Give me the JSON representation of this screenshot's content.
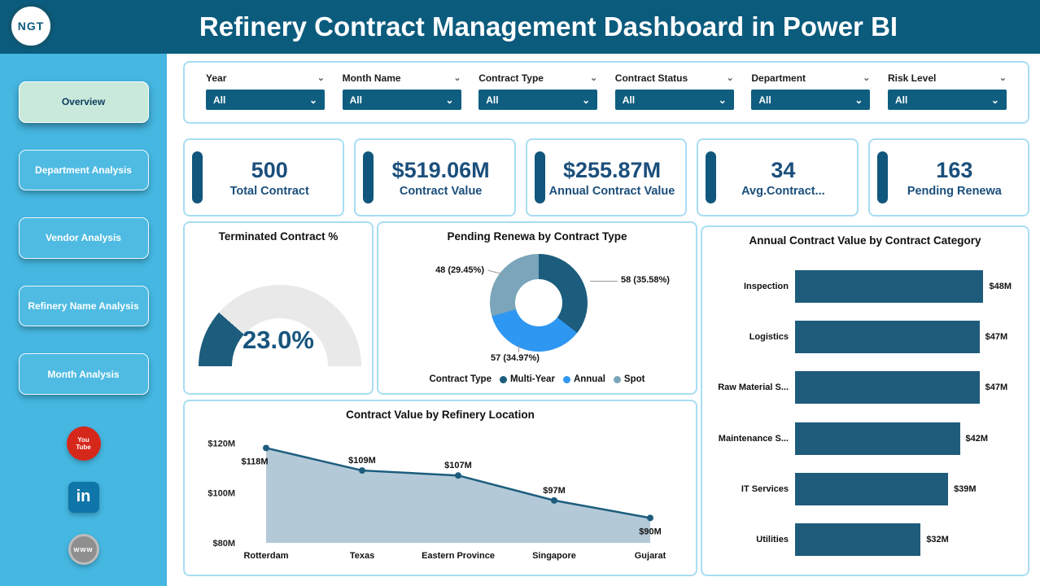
{
  "header": {
    "title": "Refinery Contract Management Dashboard in Power BI",
    "logo_text": "NGT"
  },
  "icons": {
    "chevron_down": "⌄"
  },
  "sidebar": {
    "items": [
      {
        "label": "Overview",
        "active": true
      },
      {
        "label": "Department Analysis",
        "active": false
      },
      {
        "label": "Vendor Analysis",
        "active": false
      },
      {
        "label": "Refinery Name Analysis",
        "active": false
      },
      {
        "label": "Month Analysis",
        "active": false
      }
    ],
    "social": [
      {
        "icon": "youtube-icon",
        "text": "You\nTube"
      },
      {
        "icon": "linkedin-icon",
        "text": "in"
      },
      {
        "icon": "web-icon",
        "text": "www"
      }
    ]
  },
  "filters": {
    "items": [
      {
        "label": "Year",
        "value": "All"
      },
      {
        "label": "Month Name",
        "value": "All"
      },
      {
        "label": "Contract Type",
        "value": "All"
      },
      {
        "label": "Contract Status",
        "value": "All"
      },
      {
        "label": "Department",
        "value": "All"
      },
      {
        "label": "Risk Level",
        "value": "All"
      }
    ]
  },
  "kpis": [
    {
      "value": "500",
      "label": "Total Contract"
    },
    {
      "value": "$519.06M",
      "label": "Contract Value"
    },
    {
      "value": "$255.87M",
      "label": "Annual Contract Value"
    },
    {
      "value": "34",
      "label": "Avg.Contract..."
    },
    {
      "value": "163",
      "label": "Pending Renewa"
    }
  ],
  "colors": {
    "header_bg": "#0b5b7d",
    "sidebar_bg": "#45b7e1",
    "active_tab_bg": "#c9e9da",
    "accent_dark_teal": "#1c5d7d",
    "kpi_text": "#1b4f7c",
    "panel_border": "#a8ddf3",
    "slicer_bg": "#0f5e80",
    "annual_blue": "#2e97f2",
    "spot_gray": "#7aa5ba",
    "youtube_red": "#d6271b",
    "linkedin_teal": "#0e76a8"
  },
  "chart_data": [
    {
      "id": "gauge_terminated",
      "type": "gauge",
      "title": "Terminated Contract %",
      "value": 23.0,
      "max": 100,
      "display": "23.0%",
      "fill_color": "#1c5d7d",
      "track_color": "#e9e9e9"
    },
    {
      "id": "donut_pending_renewal",
      "type": "pie",
      "title": "Pending Renewa by Contract Type",
      "legend_title": "Contract Type",
      "slices": [
        {
          "name": "Multi-Year",
          "value": 58,
          "pct": 35.58,
          "label": "58 (35.58%)",
          "color": "#1c5d7d"
        },
        {
          "name": "Annual",
          "value": 57,
          "pct": 34.97,
          "label": "57 (34.97%)",
          "color": "#2e97f2"
        },
        {
          "name": "Spot",
          "value": 48,
          "pct": 29.45,
          "label": "48 (29.45%)",
          "color": "#7aa5ba"
        }
      ]
    },
    {
      "id": "area_refinery_location",
      "type": "area",
      "title": "Contract Value by Refinery Location",
      "categories": [
        "Rotterdam",
        "Texas",
        "Eastern Province",
        "Singapore",
        "Gujarat"
      ],
      "values": [
        118,
        109,
        107,
        97,
        90
      ],
      "labels": [
        "$118M",
        "$109M",
        "$107M",
        "$97M",
        "$90M"
      ],
      "label_positions": [
        "below",
        "above",
        "above",
        "above",
        "below"
      ],
      "y_ticks": [
        "$120M",
        "$100M",
        "$80M"
      ],
      "y_tick_values": [
        120,
        100,
        80
      ],
      "ylim": [
        80,
        125
      ],
      "line_color": "#1c5d7d",
      "fill_color": "#b4c9d8"
    },
    {
      "id": "bar_contract_category",
      "type": "bar",
      "title": "Annual Contract Value by Contract Category",
      "categories": [
        "Inspection",
        "Logistics",
        "Raw Material S...",
        "Maintenance S...",
        "IT Services",
        "Utilities"
      ],
      "values": [
        48,
        47,
        47,
        42,
        39,
        32
      ],
      "labels": [
        "$48M",
        "$47M",
        "$47M",
        "$42M",
        "$39M",
        "$32M"
      ],
      "bar_color": "#1f5c7b",
      "xmax": 50
    }
  ]
}
